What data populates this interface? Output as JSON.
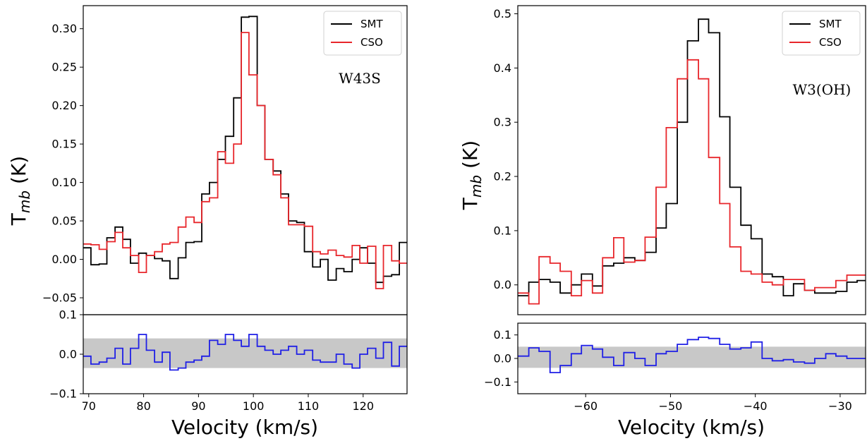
{
  "chart_data": [
    {
      "type": "line",
      "step": true,
      "annotation": "W43S",
      "xlabel": "Velocity (km/s)",
      "ylabel": {
        "base": "T",
        "sub": "mb",
        "unit": " (K)"
      },
      "xlim": [
        69,
        128
      ],
      "main": {
        "ylim": [
          -0.072,
          0.33
        ],
        "yticks": [
          -0.05,
          0.0,
          0.05,
          0.1,
          0.15,
          0.2,
          0.25,
          0.3
        ],
        "ytick_labels": [
          "−0.05",
          "0.00",
          "0.05",
          "0.10",
          "0.15",
          "0.20",
          "0.25",
          "0.30"
        ],
        "legend_position": "top-right",
        "series": [
          {
            "name": "SMT",
            "color": "#000000",
            "x": [
              69,
              70.4,
              71.9,
              73.3,
              74.8,
              76.2,
              77.6,
              79.1,
              80.5,
              82.0,
              83.4,
              84.8,
              86.3,
              87.7,
              89.2,
              90.6,
              92.0,
              93.5,
              94.9,
              96.4,
              97.8,
              99.2,
              100.7,
              102.1,
              103.6,
              105.0,
              106.4,
              107.9,
              109.3,
              110.8,
              112.2,
              113.6,
              115.1,
              116.5,
              118.0,
              119.4,
              120.8,
              122.3,
              123.7,
              125.2,
              126.6,
              128
            ],
            "y": [
              0.015,
              -0.007,
              -0.006,
              0.028,
              0.042,
              0.026,
              -0.005,
              0.008,
              0.005,
              0.001,
              -0.002,
              -0.025,
              0.002,
              0.022,
              0.023,
              0.085,
              0.1,
              0.13,
              0.16,
              0.21,
              0.315,
              0.316,
              0.2,
              0.13,
              0.115,
              0.085,
              0.05,
              0.048,
              0.01,
              -0.01,
              0.0,
              -0.027,
              -0.012,
              -0.016,
              0.0,
              0.015,
              -0.005,
              -0.03,
              -0.022,
              -0.02,
              0.022,
              0.022
            ]
          },
          {
            "name": "CSO",
            "color": "#e8262b",
            "x": [
              69,
              70.4,
              71.9,
              73.3,
              74.8,
              76.2,
              77.6,
              79.1,
              80.5,
              82.0,
              83.4,
              84.8,
              86.3,
              87.7,
              89.2,
              90.6,
              92.0,
              93.5,
              94.9,
              96.4,
              97.8,
              99.2,
              100.7,
              102.1,
              103.6,
              105.0,
              106.4,
              107.9,
              109.3,
              110.8,
              112.2,
              113.6,
              115.1,
              116.5,
              118.0,
              119.4,
              120.8,
              122.3,
              123.7,
              125.2,
              126.6,
              128
            ],
            "y": [
              0.02,
              0.019,
              0.013,
              0.023,
              0.035,
              0.015,
              0.005,
              -0.017,
              0.005,
              0.01,
              0.02,
              0.022,
              0.042,
              0.055,
              0.048,
              0.075,
              0.08,
              0.14,
              0.125,
              0.15,
              0.295,
              0.24,
              0.2,
              0.13,
              0.11,
              0.08,
              0.045,
              0.045,
              0.043,
              0.01,
              0.007,
              0.012,
              0.005,
              0.003,
              0.018,
              -0.005,
              0.017,
              -0.038,
              0.018,
              -0.002,
              -0.005,
              -0.005
            ]
          }
        ]
      },
      "residual": {
        "ylim": [
          -0.1,
          0.1
        ],
        "yticks": [
          -0.1,
          0.0,
          0.1
        ],
        "ytick_labels": [
          "−0.1",
          "0.0",
          "0.1"
        ],
        "band": [
          -0.035,
          0.04
        ],
        "band_color": "#c8c8c8",
        "series": [
          {
            "color": "#1f1fe6",
            "x": [
              69,
              70.4,
              71.9,
              73.3,
              74.8,
              76.2,
              77.6,
              79.1,
              80.5,
              82.0,
              83.4,
              84.8,
              86.3,
              87.7,
              89.2,
              90.6,
              92.0,
              93.5,
              94.9,
              96.4,
              97.8,
              99.2,
              100.7,
              102.1,
              103.6,
              105.0,
              106.4,
              107.9,
              109.3,
              110.8,
              112.2,
              113.6,
              115.1,
              116.5,
              118.0,
              119.4,
              120.8,
              122.3,
              123.7,
              125.2,
              126.6,
              128
            ],
            "y": [
              -0.005,
              -0.025,
              -0.02,
              -0.01,
              0.015,
              -0.025,
              0.015,
              0.05,
              0.01,
              -0.02,
              0.005,
              -0.04,
              -0.035,
              -0.02,
              -0.015,
              -0.005,
              0.035,
              0.025,
              0.05,
              0.035,
              0.02,
              0.05,
              0.02,
              0.01,
              0.0,
              0.01,
              0.02,
              0.0,
              0.01,
              -0.015,
              -0.02,
              -0.02,
              0.0,
              -0.025,
              -0.035,
              0.0,
              0.015,
              -0.01,
              0.03,
              -0.03,
              0.02,
              0.02
            ]
          }
        ]
      }
    },
    {
      "type": "line",
      "step": true,
      "annotation": "W3(OH)",
      "xlabel": "Velocity (km/s)",
      "ylabel": {
        "base": "T",
        "sub": "mb",
        "unit": " (K)"
      },
      "xlim": [
        -68,
        -27
      ],
      "main": {
        "ylim": [
          -0.055,
          0.515
        ],
        "yticks": [
          0.0,
          0.1,
          0.2,
          0.3,
          0.4,
          0.5
        ],
        "ytick_labels": [
          "0.0",
          "0.1",
          "0.2",
          "0.3",
          "0.4",
          "0.5"
        ],
        "legend_position": "top-right",
        "series": [
          {
            "name": "SMT",
            "color": "#000000",
            "x": [
              -68,
              -66.7,
              -65.5,
              -64.2,
              -63.0,
              -61.7,
              -60.5,
              -59.2,
              -58.0,
              -56.7,
              -55.5,
              -54.2,
              -53.0,
              -51.7,
              -50.5,
              -49.2,
              -48.0,
              -46.7,
              -45.5,
              -44.2,
              -43.0,
              -41.7,
              -40.5,
              -39.2,
              -38.0,
              -36.7,
              -35.5,
              -34.2,
              -33.0,
              -31.7,
              -30.5,
              -29.2,
              -28.0,
              -27
            ],
            "y": [
              -0.02,
              0.005,
              0.01,
              0.005,
              -0.015,
              0.0,
              0.02,
              -0.002,
              0.035,
              0.04,
              0.05,
              0.045,
              0.06,
              0.105,
              0.15,
              0.3,
              0.45,
              0.49,
              0.465,
              0.31,
              0.18,
              0.11,
              0.085,
              0.02,
              0.015,
              -0.02,
              0.002,
              -0.01,
              -0.015,
              -0.015,
              -0.012,
              0.005,
              0.008,
              0.008
            ]
          },
          {
            "name": "CSO",
            "color": "#e8262b",
            "x": [
              -68,
              -66.7,
              -65.5,
              -64.2,
              -63.0,
              -61.7,
              -60.5,
              -59.2,
              -58.0,
              -56.7,
              -55.5,
              -54.2,
              -53.0,
              -51.7,
              -50.5,
              -49.2,
              -48.0,
              -46.7,
              -45.5,
              -44.2,
              -43.0,
              -41.7,
              -40.5,
              -39.2,
              -38.0,
              -36.7,
              -35.5,
              -34.2,
              -33.0,
              -31.7,
              -30.5,
              -29.2,
              -28.0,
              -27
            ],
            "y": [
              -0.015,
              -0.035,
              0.052,
              0.04,
              0.025,
              -0.02,
              0.008,
              -0.015,
              0.05,
              0.087,
              0.042,
              0.045,
              0.088,
              0.18,
              0.29,
              0.38,
              0.415,
              0.38,
              0.235,
              0.15,
              0.07,
              0.025,
              0.02,
              0.005,
              0.0,
              0.01,
              0.01,
              -0.01,
              -0.005,
              -0.005,
              0.008,
              0.018,
              0.018,
              0.018
            ]
          }
        ]
      },
      "residual": {
        "ylim": [
          -0.15,
          0.15
        ],
        "yticks": [
          -0.1,
          0.0,
          0.1
        ],
        "ytick_labels": [
          "−0.1",
          "0.0",
          "0.1"
        ],
        "band": [
          -0.04,
          0.05
        ],
        "band_color": "#c8c8c8",
        "series": [
          {
            "color": "#1f1fe6",
            "x": [
              -68,
              -66.7,
              -65.5,
              -64.2,
              -63.0,
              -61.7,
              -60.5,
              -59.2,
              -58.0,
              -56.7,
              -55.5,
              -54.2,
              -53.0,
              -51.7,
              -50.5,
              -49.2,
              -48.0,
              -46.7,
              -45.5,
              -44.2,
              -43.0,
              -41.7,
              -40.5,
              -39.2,
              -38.0,
              -36.7,
              -35.5,
              -34.2,
              -33.0,
              -31.7,
              -30.5,
              -29.2,
              -28.0,
              -27
            ],
            "y": [
              0.01,
              0.045,
              0.03,
              -0.06,
              -0.03,
              0.02,
              0.055,
              0.04,
              0.005,
              -0.03,
              0.025,
              0.0,
              -0.03,
              0.02,
              0.03,
              0.06,
              0.08,
              0.09,
              0.085,
              0.06,
              0.04,
              0.045,
              0.07,
              0.0,
              -0.01,
              -0.005,
              -0.015,
              -0.02,
              0.0,
              0.02,
              0.01,
              0.0,
              0.0,
              0.0
            ]
          }
        ]
      }
    }
  ]
}
